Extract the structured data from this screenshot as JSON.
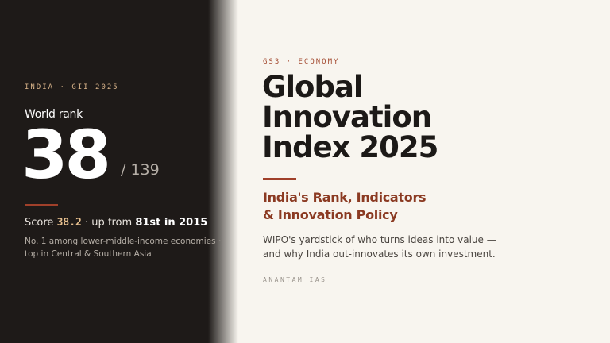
{
  "left": {
    "kicker": "INDIA · GII 2025",
    "rank_label": "World rank",
    "rank": "38",
    "rank_total": "/ 139",
    "score": {
      "label": "Score",
      "value": "38.2",
      "middle": "· up from",
      "previous": "81st in 2015"
    },
    "note_lines": [
      "No. 1 among lower-middle-income economies ·",
      "top in Central & Southern Asia"
    ]
  },
  "right": {
    "kicker": "GS3 · ECONOMY",
    "title_lines": [
      "Global",
      "Innovation",
      "Index 2025"
    ],
    "subtitle_lines": [
      "India's Rank, Indicators",
      "& Innovation Policy"
    ],
    "description_lines": [
      "WIPO's yardstick of who turns ideas into value —",
      "and why India out-innovates its own investment."
    ],
    "brand": "ANANTAM IAS"
  }
}
